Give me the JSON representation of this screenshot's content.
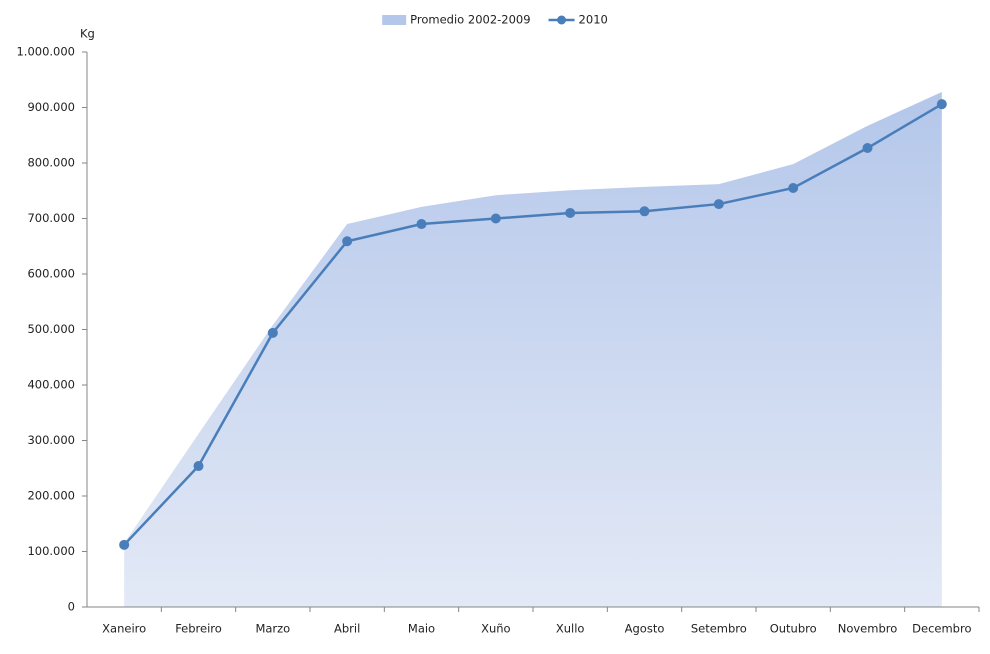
{
  "chart_data": {
    "type": "line",
    "ylabel": "Kg",
    "categories": [
      "Xaneiro",
      "Febreiro",
      "Marzo",
      "Abril",
      "Maio",
      "Xuño",
      "Xullo",
      "Agosto",
      "Setembro",
      "Outubro",
      "Novembro",
      "Decembro"
    ],
    "series": [
      {
        "name": "Promedio 2002-2009",
        "type": "area",
        "color": "#b4c7ea",
        "values": [
          115000,
          312000,
          508000,
          690000,
          721000,
          742000,
          751000,
          757000,
          762000,
          798000,
          867000,
          928000
        ]
      },
      {
        "name": "2010",
        "type": "line",
        "color": "#4a7ebb",
        "values": [
          112000,
          254000,
          494000,
          659000,
          690000,
          700000,
          710000,
          713000,
          726000,
          755000,
          827000,
          906000
        ]
      }
    ],
    "ylim": [
      0,
      1000000
    ],
    "yticks": [
      0,
      {
        "value": 100000,
        "label": "100.000"
      },
      {
        "value": 200000,
        "label": "200.000"
      },
      {
        "value": 300000,
        "label": "300.000"
      },
      {
        "value": 400000,
        "label": "400.000"
      },
      {
        "value": 500000,
        "label": "500.000"
      },
      {
        "value": 600000,
        "label": "600.000"
      },
      {
        "value": 700000,
        "label": "700.000"
      },
      {
        "value": 800000,
        "label": "800.000"
      },
      {
        "value": 900000,
        "label": "900.000"
      },
      {
        "value": 1000000,
        "label": "1.000.000"
      }
    ],
    "legend": "top"
  }
}
